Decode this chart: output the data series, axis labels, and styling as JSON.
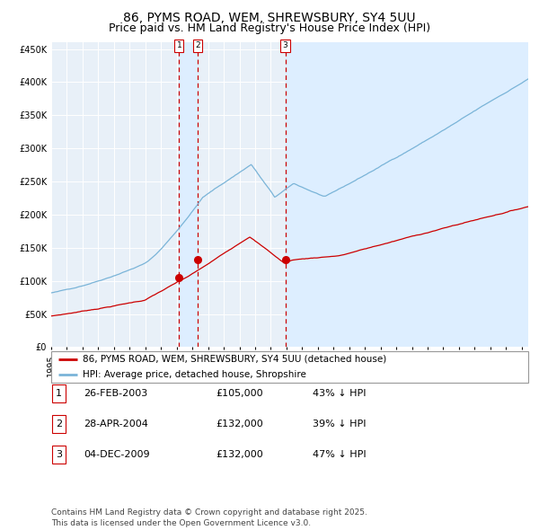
{
  "title": "86, PYMS ROAD, WEM, SHREWSBURY, SY4 5UU",
  "subtitle": "Price paid vs. HM Land Registry's House Price Index (HPI)",
  "ylim": [
    0,
    460000
  ],
  "yticks": [
    0,
    50000,
    100000,
    150000,
    200000,
    250000,
    300000,
    350000,
    400000,
    450000
  ],
  "ytick_labels": [
    "£0",
    "£50K",
    "£100K",
    "£150K",
    "£200K",
    "£250K",
    "£300K",
    "£350K",
    "£400K",
    "£450K"
  ],
  "hpi_color": "#7ab4d8",
  "price_color": "#cc0000",
  "sale1_date": "2003-02-26",
  "sale1_price": 105000,
  "sale2_date": "2004-04-28",
  "sale2_price": 132000,
  "sale3_date": "2009-12-04",
  "sale3_price": 132000,
  "vline_color": "#cc0000",
  "shade_color": "#ddeeff",
  "background_color": "#e8f0f8",
  "grid_color": "#ffffff",
  "legend_label_red": "86, PYMS ROAD, WEM, SHREWSBURY, SY4 5UU (detached house)",
  "legend_label_blue": "HPI: Average price, detached house, Shropshire",
  "table_rows": [
    [
      "1",
      "26-FEB-2003",
      "£105,000",
      "43% ↓ HPI"
    ],
    [
      "2",
      "28-APR-2004",
      "£132,000",
      "39% ↓ HPI"
    ],
    [
      "3",
      "04-DEC-2009",
      "£132,000",
      "47% ↓ HPI"
    ]
  ],
  "footnote": "Contains HM Land Registry data © Crown copyright and database right 2025.\nThis data is licensed under the Open Government Licence v3.0.",
  "title_fontsize": 10,
  "subtitle_fontsize": 9,
  "tick_fontsize": 7,
  "legend_fontsize": 7.5,
  "table_fontsize": 8,
  "footnote_fontsize": 6.5
}
